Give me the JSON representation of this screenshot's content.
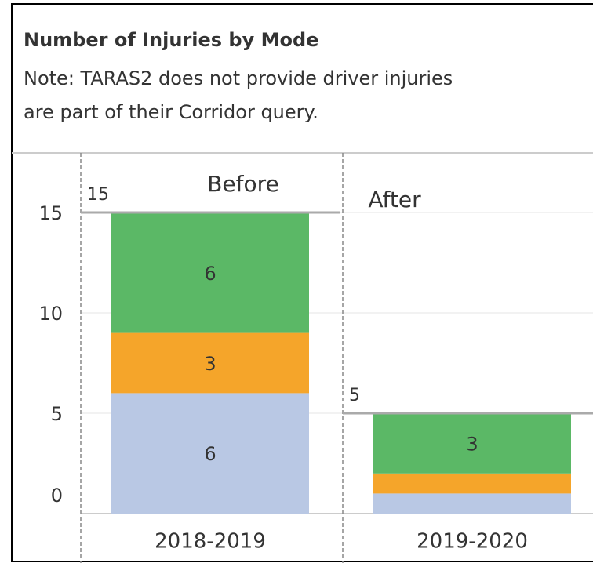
{
  "chart_data": {
    "type": "stacked_bar",
    "title": "Number of Injuries by Mode",
    "subtitle": [
      "Note: TARAS2 does not provide driver injuries",
      "are part of their Corridor query."
    ],
    "periods": [
      "Before",
      "After"
    ],
    "categories": [
      "2018-2019",
      "2019-2020"
    ],
    "series": [
      {
        "color": "#b9c8e4",
        "values": [
          6,
          1
        ]
      },
      {
        "color": "#f5a52a",
        "values": [
          3,
          1
        ]
      },
      {
        "color": "#5bb866",
        "values": [
          6,
          3
        ]
      }
    ],
    "totals": [
      15,
      5
    ],
    "ylim": [
      0,
      15
    ],
    "yticks": [
      0,
      5,
      10,
      15
    ],
    "grid": true
  }
}
